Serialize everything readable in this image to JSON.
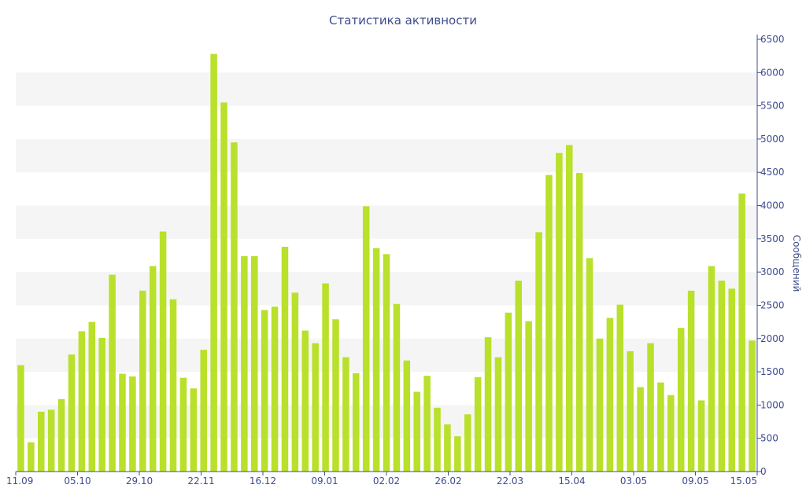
{
  "chart_data": {
    "type": "bar",
    "title": "Статистика активности",
    "ylabel": "Сообщений",
    "ylim": [
      0,
      6500
    ],
    "yticks": [
      0,
      500,
      1000,
      1500,
      2000,
      2500,
      3000,
      3500,
      4000,
      4500,
      5000,
      5500,
      6000,
      6500
    ],
    "x_tick_labels": [
      "11.09",
      "05.10",
      "29.10",
      "22.11",
      "16.12",
      "09.01",
      "02.02",
      "26.02",
      "22.03",
      "15.04",
      "03.05",
      "09.05",
      "15.05"
    ],
    "x_tick_bar_index": [
      0,
      3,
      6,
      9,
      12,
      15,
      18,
      21,
      24,
      27,
      30,
      33,
      36
    ],
    "y_axis_side": "right",
    "grid": "alternating horizontal bands",
    "legend": "none",
    "colors": {
      "bar": "#b9e02b",
      "band": "#f5f5f5",
      "text": "#3e4c8f",
      "axis": "#3e4c8f"
    },
    "values": [
      1600,
      440,
      900,
      930,
      1090,
      1760,
      2110,
      2250,
      2010,
      2960,
      1470,
      1430,
      2720,
      3090,
      3610,
      2590,
      1410,
      1250,
      1830,
      6280,
      5550,
      4950,
      3240,
      3240,
      2430,
      2480,
      3380,
      2690,
      2120,
      1930,
      2830,
      2290,
      1720,
      1480,
      3990,
      3360,
      3270,
      2520,
      1670,
      1200,
      1440,
      960,
      710,
      530,
      860,
      1420,
      2020,
      1720,
      2390,
      2870,
      2260,
      3600,
      4460,
      4790,
      4910,
      4490,
      3210,
      2000,
      2310,
      2510,
      1810,
      1270,
      1930,
      1340,
      1150,
      2160,
      2720,
      1070,
      3090,
      2870,
      2750,
      4180,
      1970
    ]
  }
}
